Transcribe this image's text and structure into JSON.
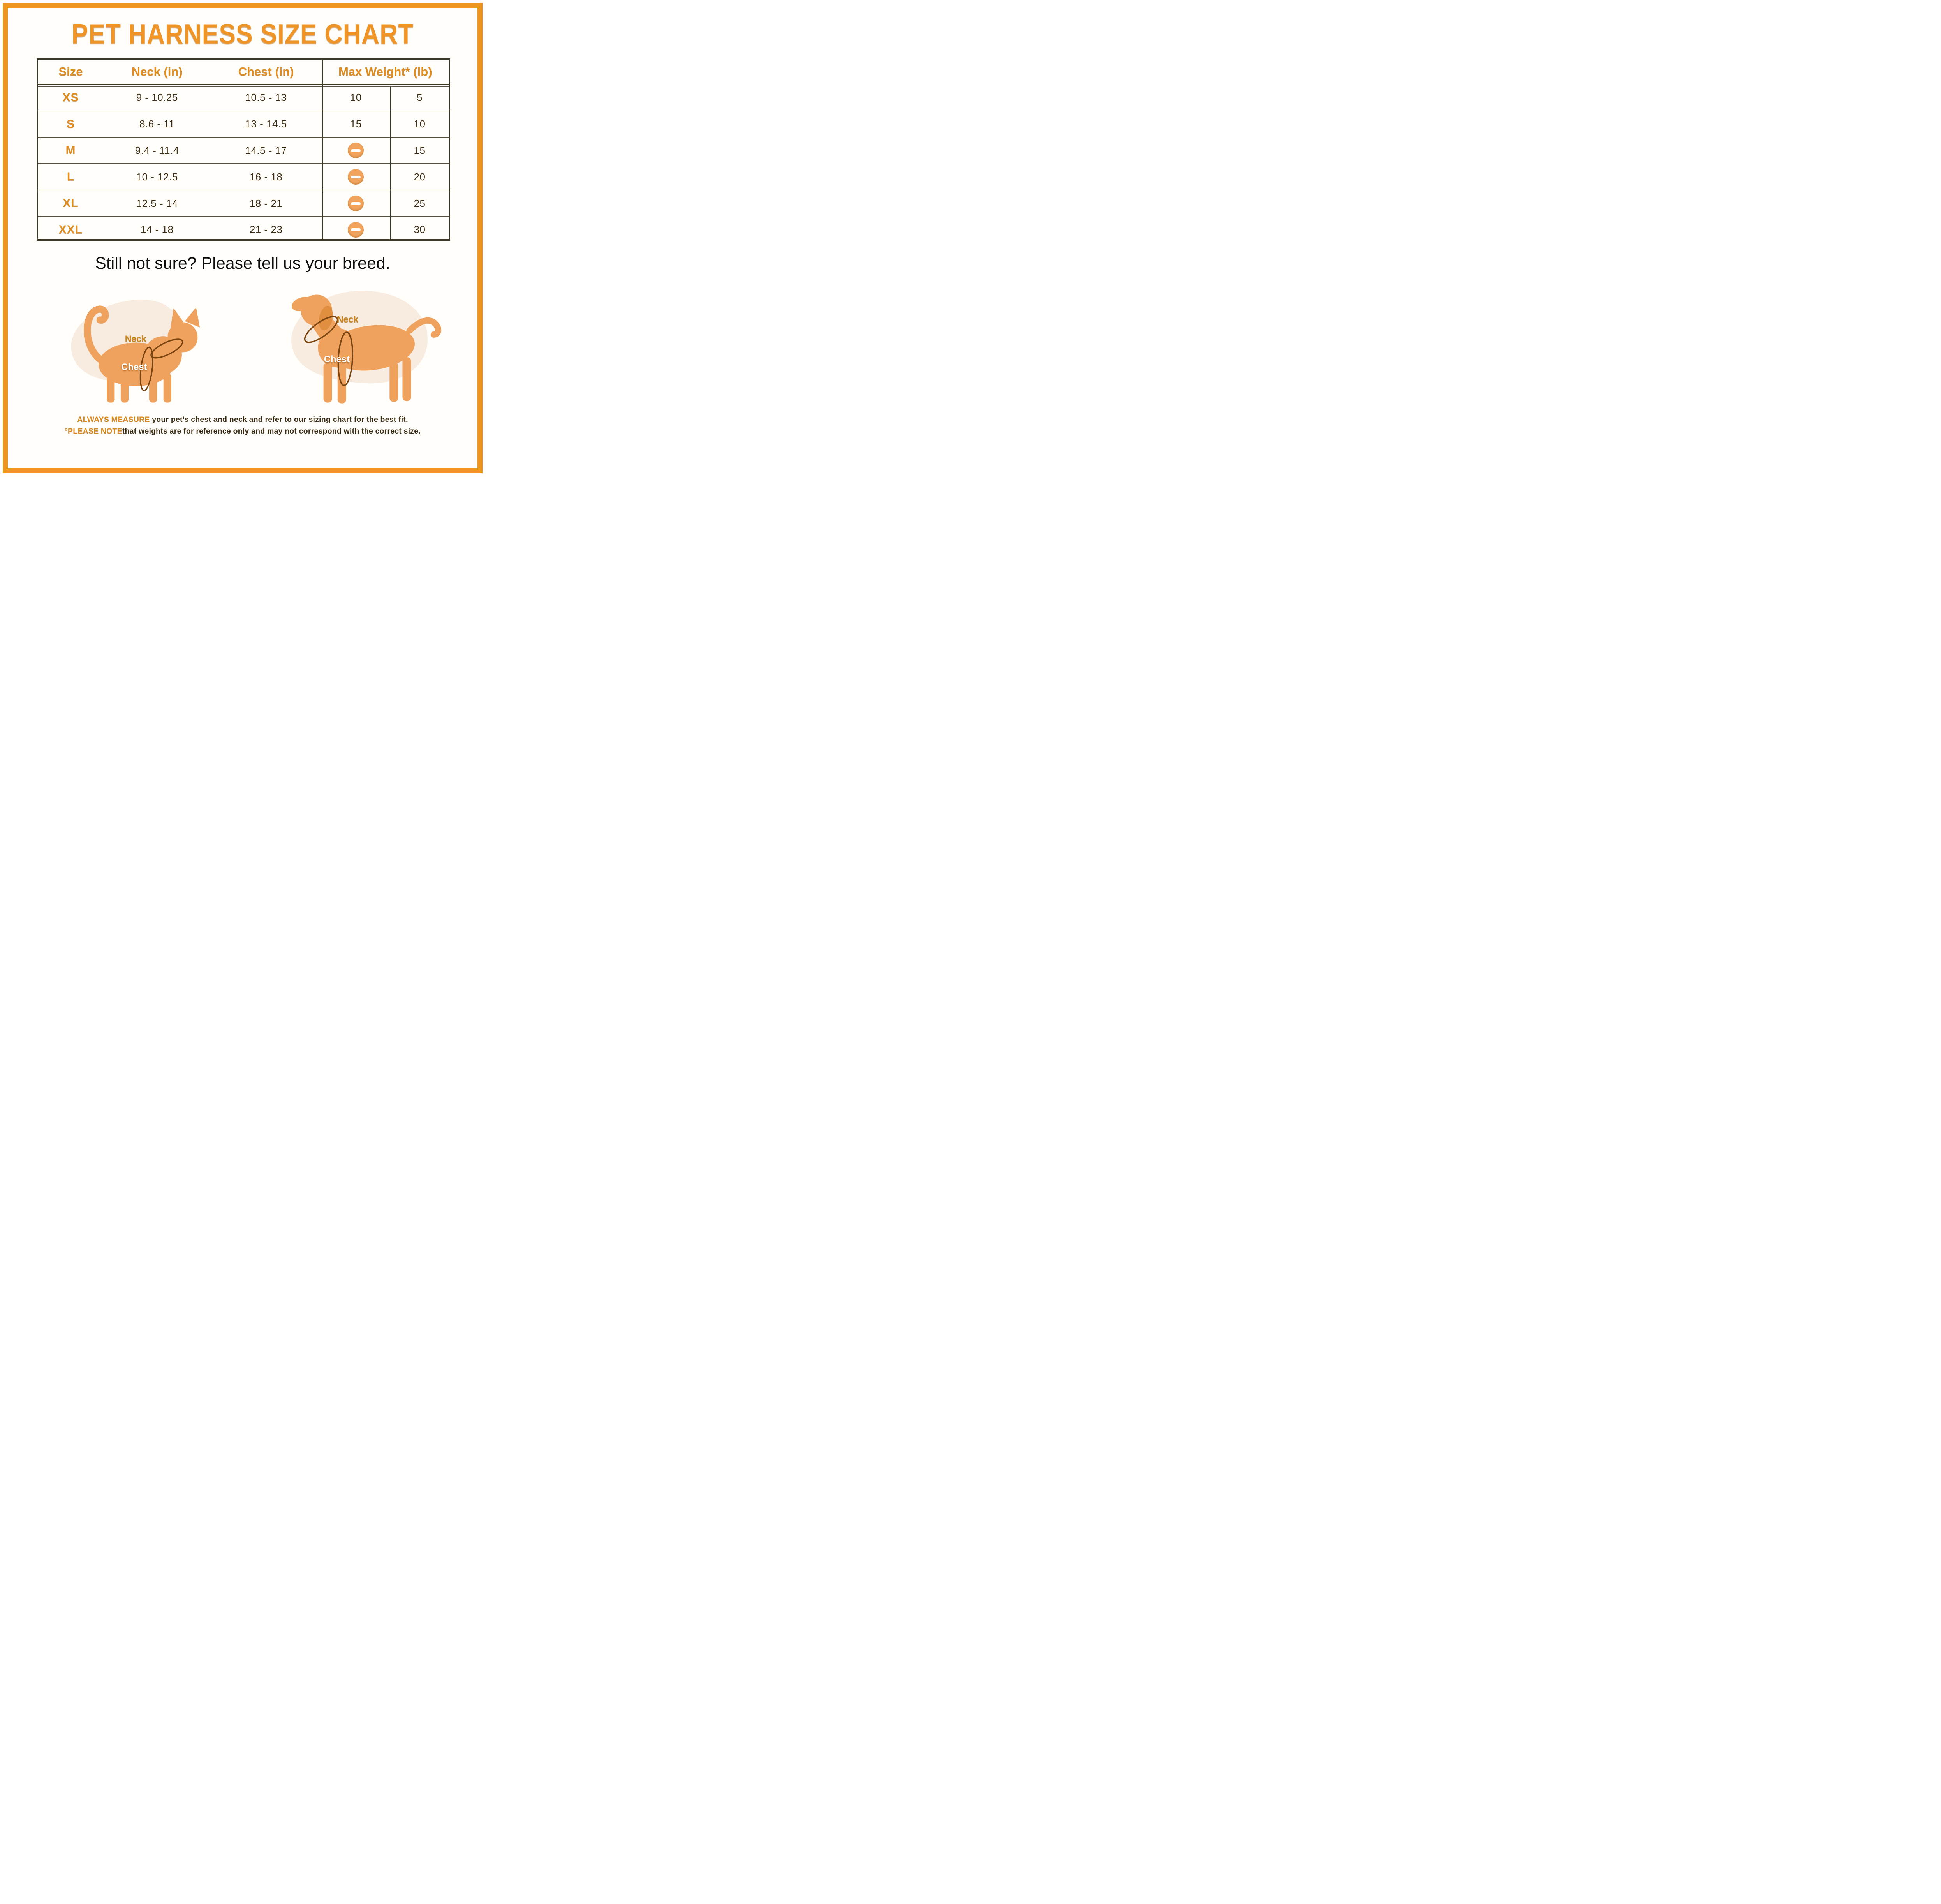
{
  "page": {
    "title": "PET HARNESS SIZE CHART",
    "subtitle": "Still not sure? Please tell us your breed."
  },
  "colors": {
    "accent": "#EE9420",
    "title": "#EF9528",
    "table_border": "#3B3626",
    "row_line": "#55503E",
    "header_orange": "#DF8E25",
    "text_dark": "#3A2B13",
    "minus_circle": "#F0A45E",
    "silhouette": "#EFA25D",
    "blob": "#F8EBE0",
    "loop": "#7A4410",
    "footnote_accent": "#D8891F"
  },
  "table": {
    "headers": {
      "size": "Size",
      "neck": "Neck (in)",
      "chest": "Chest (in)",
      "max_weight": "Max Weight* (lb)"
    },
    "rows": [
      {
        "size": "XS",
        "neck": "9 - 10.25",
        "chest": "10.5 - 13",
        "weight_col1": "10",
        "weight_col1_icon": null,
        "weight_col2": "5"
      },
      {
        "size": "S",
        "neck": "8.6 - 11",
        "chest": "13 - 14.5",
        "weight_col1": "15",
        "weight_col1_icon": null,
        "weight_col2": "10"
      },
      {
        "size": "M",
        "neck": "9.4 - 11.4",
        "chest": "14.5 - 17",
        "weight_col1": null,
        "weight_col1_icon": "minus-icon",
        "weight_col2": "15"
      },
      {
        "size": "L",
        "neck": "10 - 12.5",
        "chest": "16 - 18",
        "weight_col1": null,
        "weight_col1_icon": "minus-icon",
        "weight_col2": "20"
      },
      {
        "size": "XL",
        "neck": "12.5 - 14",
        "chest": "18 - 21",
        "weight_col1": null,
        "weight_col1_icon": "minus-icon",
        "weight_col2": "25"
      },
      {
        "size": "XXL",
        "neck": "14 - 18",
        "chest": "21 - 23",
        "weight_col1": null,
        "weight_col1_icon": "minus-icon",
        "weight_col2": "30"
      }
    ]
  },
  "illustrations": {
    "cat": {
      "name": "cat-silhouette",
      "neck_label": "Neck",
      "chest_label": "Chest"
    },
    "dog": {
      "name": "dog-silhouette",
      "neck_label": "Neck",
      "chest_label": "Chest"
    }
  },
  "footnotes": [
    {
      "bold": "ALWAYS MEASURE",
      "rest": " your pet’s chest and neck and refer to our sizing chart for the best fit."
    },
    {
      "bold": "°PLEASE NOTE",
      "rest": "that weights are for reference only and may not correspond with the correct size."
    }
  ]
}
